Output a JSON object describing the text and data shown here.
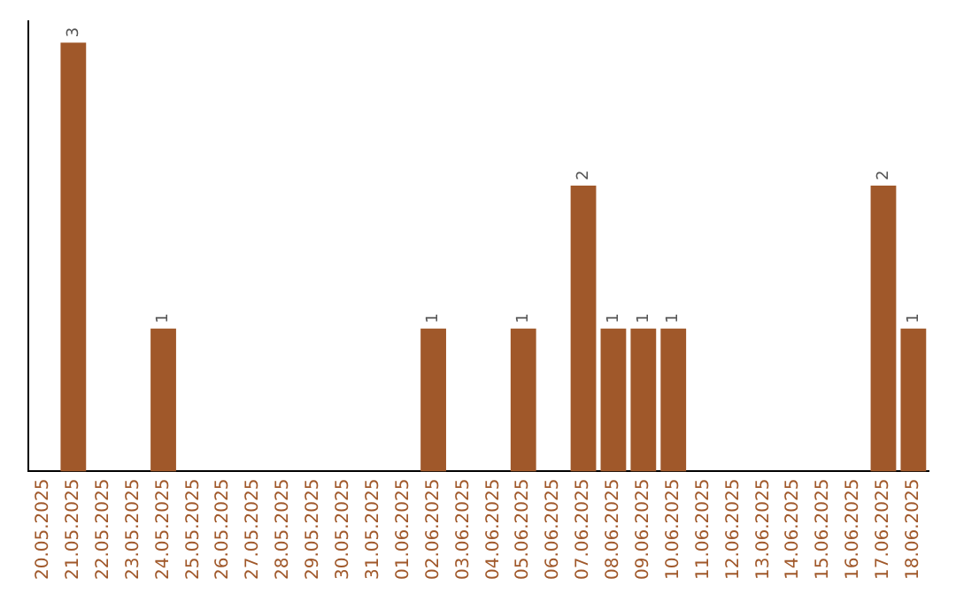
{
  "chart_data": {
    "type": "bar",
    "categories": [
      "20.05.2025",
      "21.05.2025",
      "22.05.2025",
      "23.05.2025",
      "24.05.2025",
      "25.05.2025",
      "26.05.2025",
      "27.05.2025",
      "28.05.2025",
      "29.05.2025",
      "30.05.2025",
      "31.05.2025",
      "01.06.2025",
      "02.06.2025",
      "03.06.2025",
      "04.06.2025",
      "05.06.2025",
      "06.06.2025",
      "07.06.2025",
      "08.06.2025",
      "09.06.2025",
      "10.06.2025",
      "11.06.2025",
      "12.06.2025",
      "13.06.2025",
      "14.06.2025",
      "15.06.2025",
      "16.06.2025",
      "17.06.2025",
      "18.06.2025"
    ],
    "values": [
      0,
      3,
      0,
      0,
      1,
      0,
      0,
      0,
      0,
      0,
      0,
      0,
      0,
      1,
      0,
      0,
      1,
      0,
      2,
      1,
      1,
      1,
      0,
      0,
      0,
      0,
      0,
      0,
      2,
      1
    ],
    "value_labels": [
      null,
      "3",
      null,
      null,
      "1",
      null,
      null,
      null,
      null,
      null,
      null,
      null,
      null,
      "1",
      null,
      null,
      "1",
      null,
      "2",
      "1",
      "1",
      "1",
      null,
      null,
      null,
      null,
      null,
      null,
      "2",
      "1"
    ],
    "color": "#a0582a",
    "tick_labels": "x",
    "grid": false,
    "legend": false
  }
}
